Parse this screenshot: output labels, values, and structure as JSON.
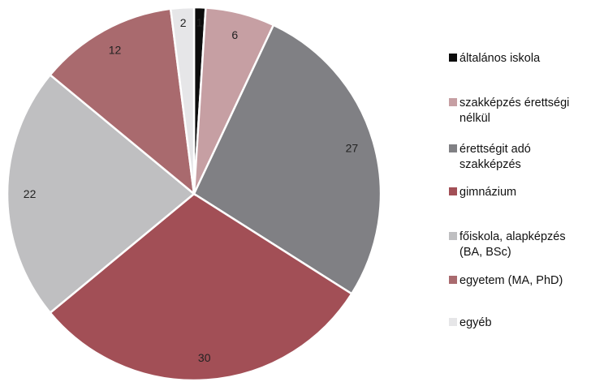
{
  "chart_data": {
    "type": "pie",
    "title": "",
    "legend_position": "right",
    "slices": [
      {
        "label": "általános iskola",
        "legend_lines": [
          "általános iskola"
        ],
        "value": 1,
        "color": "#0d0d0d"
      },
      {
        "label": "szakképzés érettségi nélkül",
        "legend_lines": [
          "szakképzés érettségi",
          "nélkül"
        ],
        "value": 6,
        "color": "#c69fa3"
      },
      {
        "label": "érettségit adó szakképzés",
        "legend_lines": [
          "érettségit adó",
          "szakképzés"
        ],
        "value": 27,
        "color": "#808084"
      },
      {
        "label": "gimnázium",
        "legend_lines": [
          "gimnázium"
        ],
        "value": 30,
        "color": "#a24f56"
      },
      {
        "label": "főiskola, alapképzés (BA, BSc)",
        "legend_lines": [
          "főiskola, alapképzés",
          "(BA, BSc)"
        ],
        "value": 22,
        "color": "#bfbfc1"
      },
      {
        "label": "egyetem (MA, PhD)",
        "legend_lines": [
          "egyetem (MA, PhD)"
        ],
        "value": 12,
        "color": "#a96a6e"
      },
      {
        "label": "egyéb",
        "legend_lines": [
          "egyéb"
        ],
        "value": 2,
        "color": "#e6e6e8"
      }
    ]
  }
}
